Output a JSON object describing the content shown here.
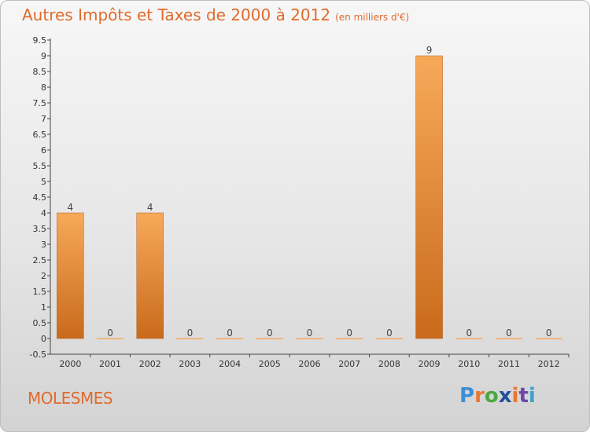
{
  "title": "Autres Impôts et Taxes de 2000 à 2012",
  "subtitle": "(en milliers d'€)",
  "location": "MOLESMES",
  "brand": {
    "letters": [
      "P",
      "r",
      "o",
      "x",
      "i",
      "t",
      "i"
    ],
    "colors": [
      "#3a8fd6",
      "#e8772e",
      "#48a843",
      "#1f4f9c",
      "#e8772e",
      "#6f46a8",
      "#3ea0c9"
    ]
  },
  "colors": {
    "bar_top": "#f7a95a",
    "bar_bottom": "#c96a1c",
    "accent": "#e06b2b"
  },
  "chart_data": {
    "type": "bar",
    "title": "Autres Impôts et Taxes de 2000 à 2012",
    "subtitle": "(en milliers d'€)",
    "categories": [
      "2000",
      "2001",
      "2002",
      "2003",
      "2004",
      "2005",
      "2006",
      "2007",
      "2008",
      "2009",
      "2010",
      "2011",
      "2012"
    ],
    "values": [
      4,
      0,
      4,
      0,
      0,
      0,
      0,
      0,
      0,
      9,
      0,
      0,
      0
    ],
    "data_labels": [
      "4",
      "0",
      "4",
      "0",
      "0",
      "0",
      "0",
      "0",
      "0",
      "9",
      "0",
      "0",
      "0"
    ],
    "ylim": [
      -0.5,
      9.5
    ],
    "yticks": [
      "-0.5",
      "0",
      "0.5",
      "1",
      "1.5",
      "2",
      "2.5",
      "3",
      "3.5",
      "4",
      "4.5",
      "5",
      "5.5",
      "6",
      "6.5",
      "7",
      "7.5",
      "8",
      "8.5",
      "9",
      "9.5"
    ],
    "grid": false,
    "legend": "none"
  }
}
